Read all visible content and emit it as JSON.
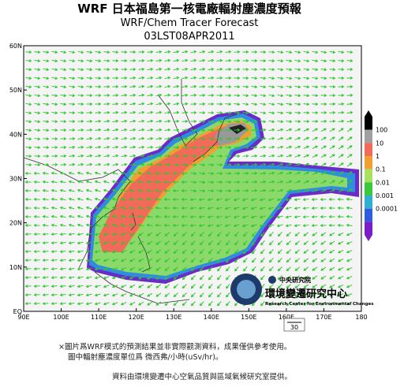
{
  "header": {
    "title": "WRF 日本福島第一核電廠輻射塵濃度預報",
    "subtitle": "WRF/Chem Tracer Forecast",
    "time": "03LST08APR2011"
  },
  "map": {
    "lat_labels": [
      "60N",
      "50N",
      "40N",
      "30N",
      "20N",
      "10N",
      "EQ"
    ],
    "lon_labels": [
      "90E",
      "100E",
      "110E",
      "120E",
      "130E",
      "140E",
      "150E",
      "160E",
      "170E",
      "180"
    ],
    "reference_vector": "30"
  },
  "legend": {
    "labels": [
      "100",
      "10",
      "1",
      "0.1",
      "0.01",
      "0.001",
      "0.0001"
    ]
  },
  "logo": {
    "institute": "中央研究院",
    "center": "環境變遷研究中心",
    "center_en": "Research Center for Environmental Changes"
  },
  "notes": [
    "×圖片爲WRF模式的預測結果並非實際觀測資料，成果僅供參考使用。",
    "圖中輻射塵濃度單位爲 微西弗/小時(uSv/hr)。"
  ],
  "credit": "資料由環境變遷中心空氣品質與區域氣候研究室提供。"
}
